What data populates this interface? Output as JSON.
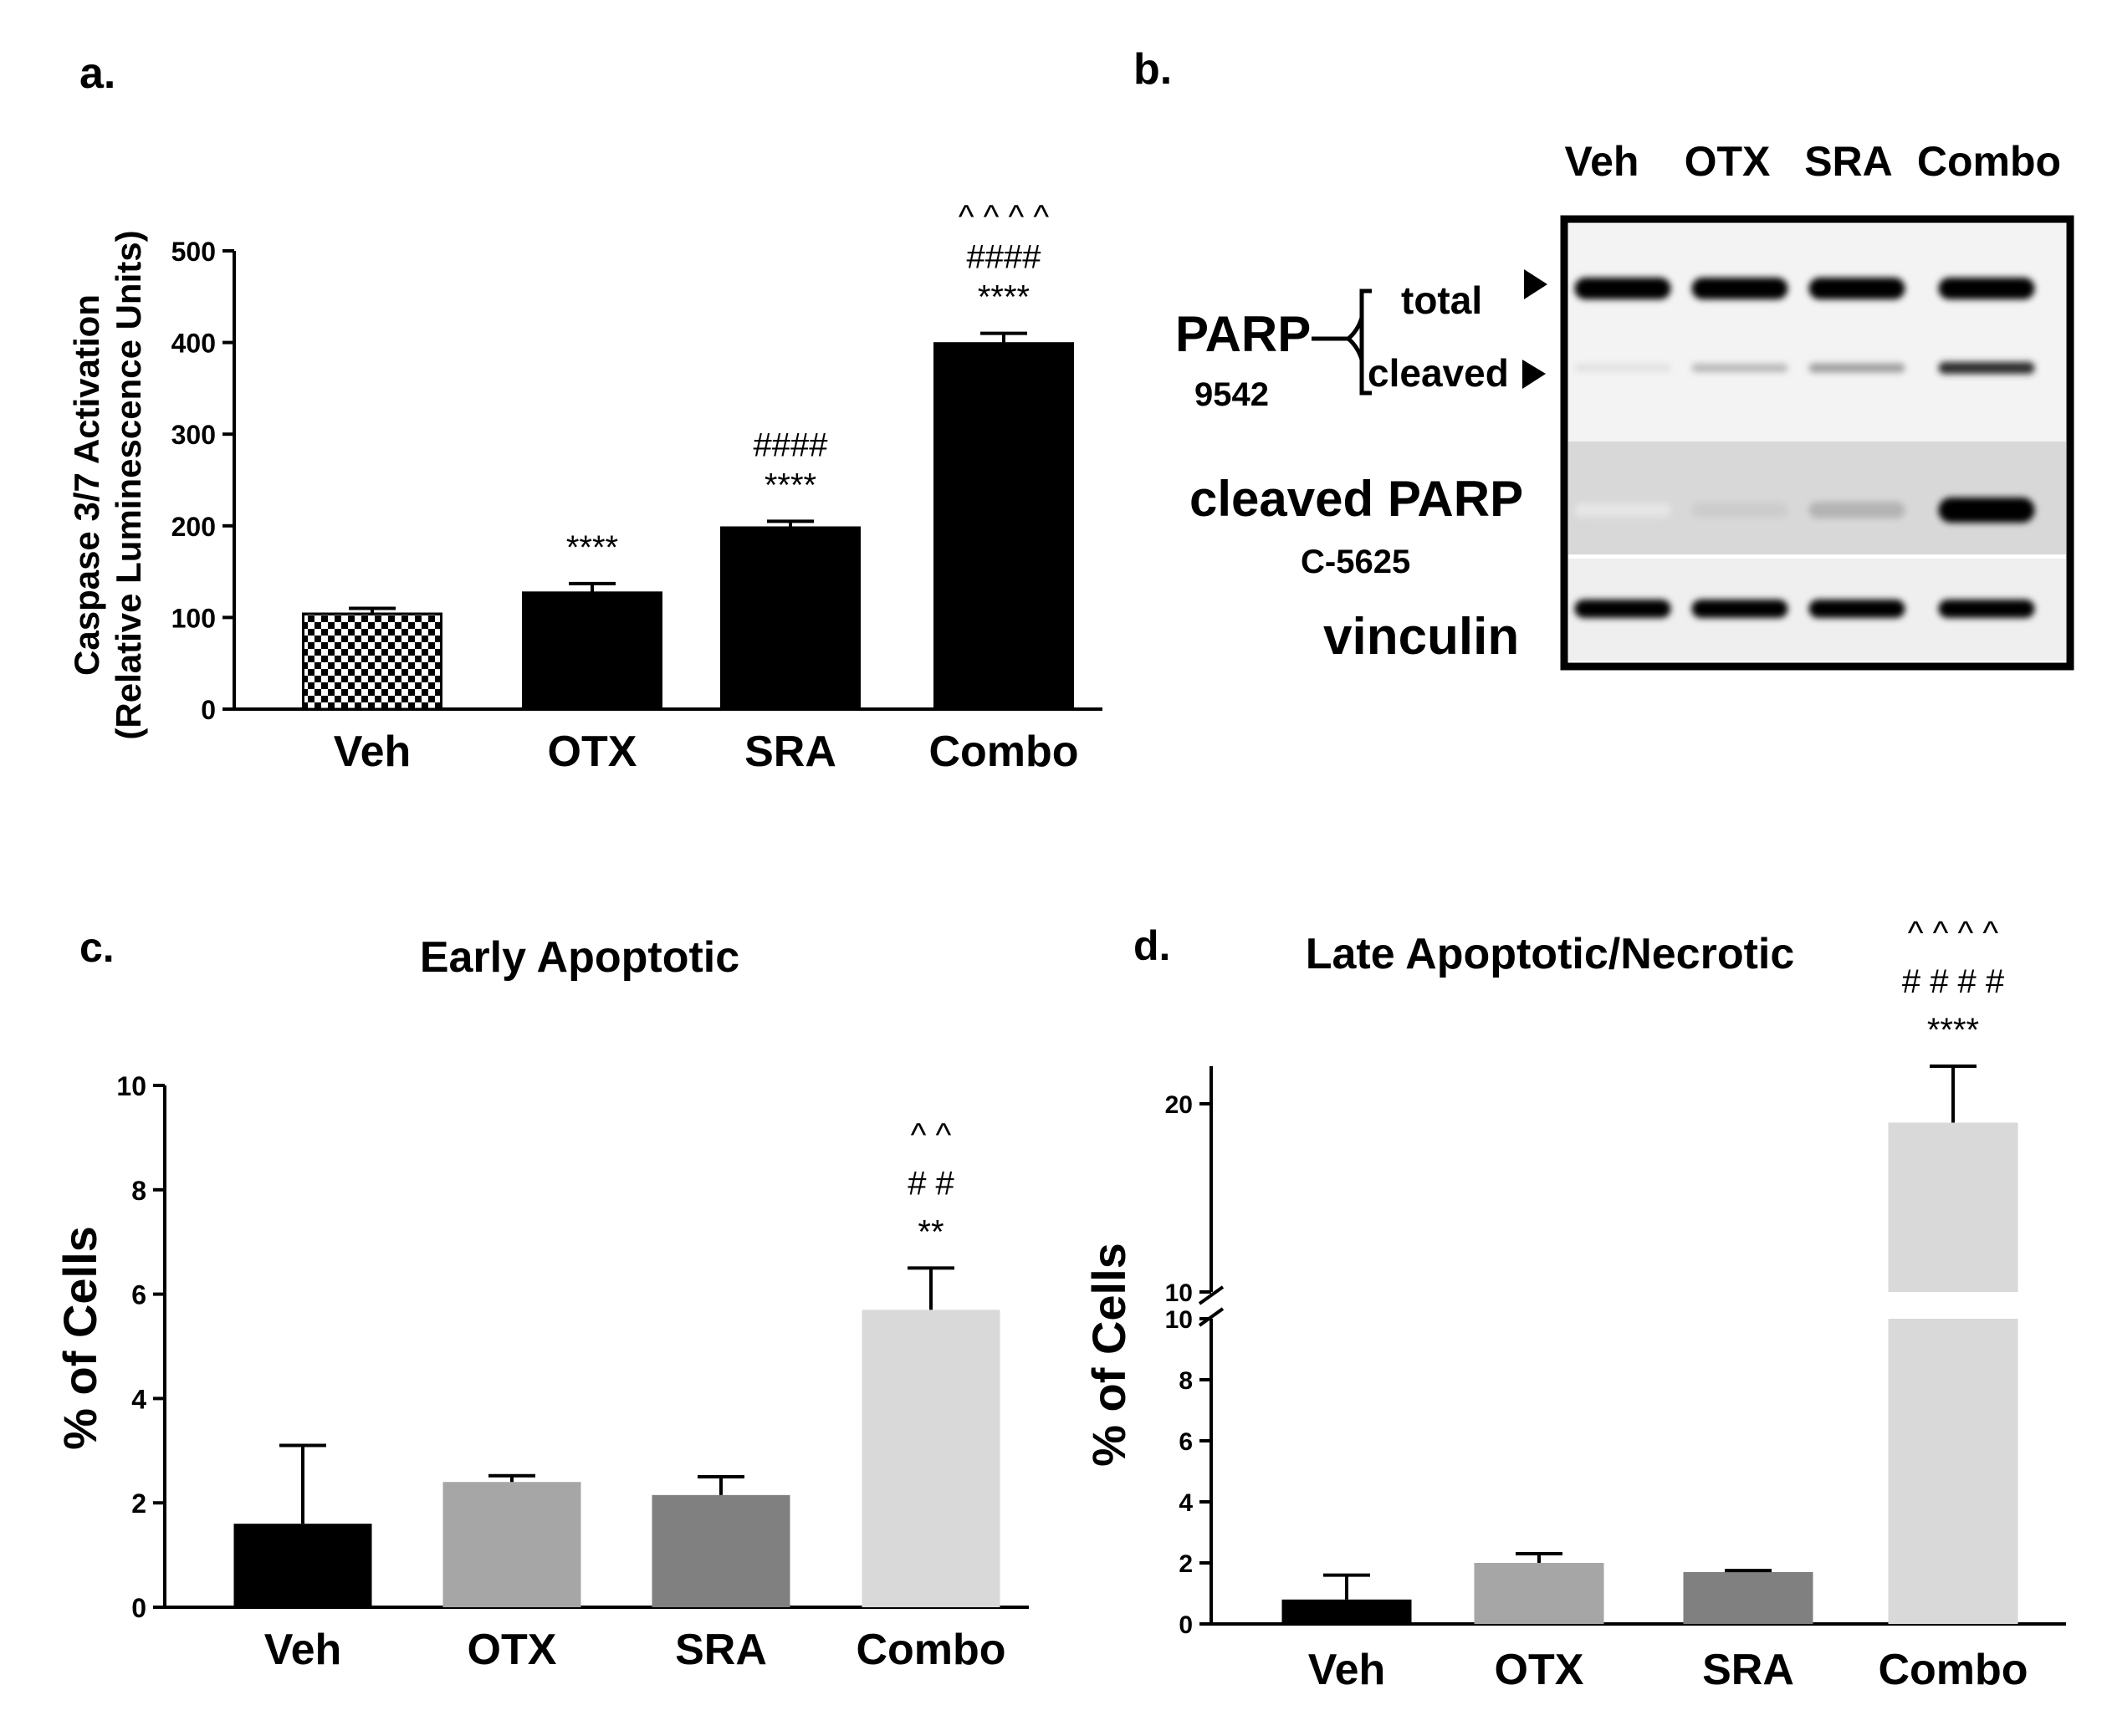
{
  "chart_data": [
    {
      "panel": "a.",
      "type": "bar",
      "title": "",
      "ylabel_line1": "Caspase 3/7 Activation",
      "ylabel_line2": "(Relative Luminescence Units)",
      "xlabel": "",
      "categories": [
        "Veh",
        "OTX",
        "SRA",
        "Combo"
      ],
      "values": [
        104,
        127,
        198,
        399
      ],
      "errors": [
        6,
        10,
        7,
        11
      ],
      "ylim": [
        0,
        500
      ],
      "yticks": [
        "0",
        "100",
        "200",
        "300",
        "400",
        "500"
      ],
      "ytick_values": [
        0,
        100,
        200,
        300,
        400,
        500
      ],
      "bar_styles": [
        "checker",
        "black",
        "black",
        "black"
      ],
      "annotations": [
        [],
        [
          "****"
        ],
        [
          "****",
          "####"
        ],
        [
          "****",
          "####",
          "^ ^ ^ ^"
        ]
      ]
    },
    {
      "panel": "b.",
      "type": "blot",
      "lanes": [
        "Veh",
        "OTX",
        "SRA",
        "Combo"
      ],
      "parp_label": "PARP",
      "parp_antibody": "9542",
      "total_label": "total",
      "cleaved_label": "cleaved",
      "cleaved_parp_label": "cleaved PARP",
      "cleaved_parp_antibody": "C-5625",
      "loading_label": "vinculin",
      "band_intensity": {
        "total": [
          1.0,
          1.0,
          1.0,
          1.0
        ],
        "cleaved": [
          0.12,
          0.28,
          0.38,
          0.82
        ],
        "cleaved_parp": [
          0.1,
          0.2,
          0.3,
          1.0
        ],
        "vinculin": [
          1.0,
          1.0,
          1.0,
          1.0
        ]
      }
    },
    {
      "panel": "c.",
      "type": "bar",
      "title": "Early Apoptotic",
      "ylabel": "% of Cells",
      "xlabel": "",
      "categories": [
        "Veh",
        "OTX",
        "SRA",
        "Combo"
      ],
      "values": [
        1.6,
        2.4,
        2.15,
        5.7
      ],
      "errors": [
        1.5,
        0.12,
        0.35,
        0.8
      ],
      "ylim": [
        0,
        10
      ],
      "yticks": [
        "0",
        "2",
        "4",
        "6",
        "8",
        "10"
      ],
      "ytick_values": [
        0,
        2,
        4,
        6,
        8,
        10
      ],
      "bar_colors": [
        "#000000",
        "#a6a6a6",
        "#808080",
        "#d9d9d9"
      ],
      "annotations": [
        [],
        [],
        [],
        [
          "**",
          "# #",
          "^ ^"
        ]
      ]
    },
    {
      "panel": "d.",
      "type": "bar",
      "title": "Late Apoptotic/Necrotic",
      "ylabel": "% of Cells",
      "xlabel": "",
      "categories": [
        "Veh",
        "OTX",
        "SRA",
        "Combo"
      ],
      "values": [
        0.8,
        2.0,
        1.7,
        19
      ],
      "errors": [
        0.8,
        0.3,
        0.05,
        3
      ],
      "ylim_lower": [
        0,
        10
      ],
      "ylim_upper": [
        10,
        22
      ],
      "yticks_lower": [
        "0",
        "2",
        "4",
        "6",
        "8",
        "10"
      ],
      "ytick_values_lower": [
        0,
        2,
        4,
        6,
        8,
        10
      ],
      "yticks_upper": [
        "10",
        "20"
      ],
      "ytick_values_upper": [
        10,
        20
      ],
      "bar_colors": [
        "#000000",
        "#a6a6a6",
        "#808080",
        "#d9d9d9"
      ],
      "annotations": [
        [],
        [],
        [],
        [
          "****",
          "# # # #",
          "^ ^ ^ ^"
        ]
      ]
    }
  ]
}
